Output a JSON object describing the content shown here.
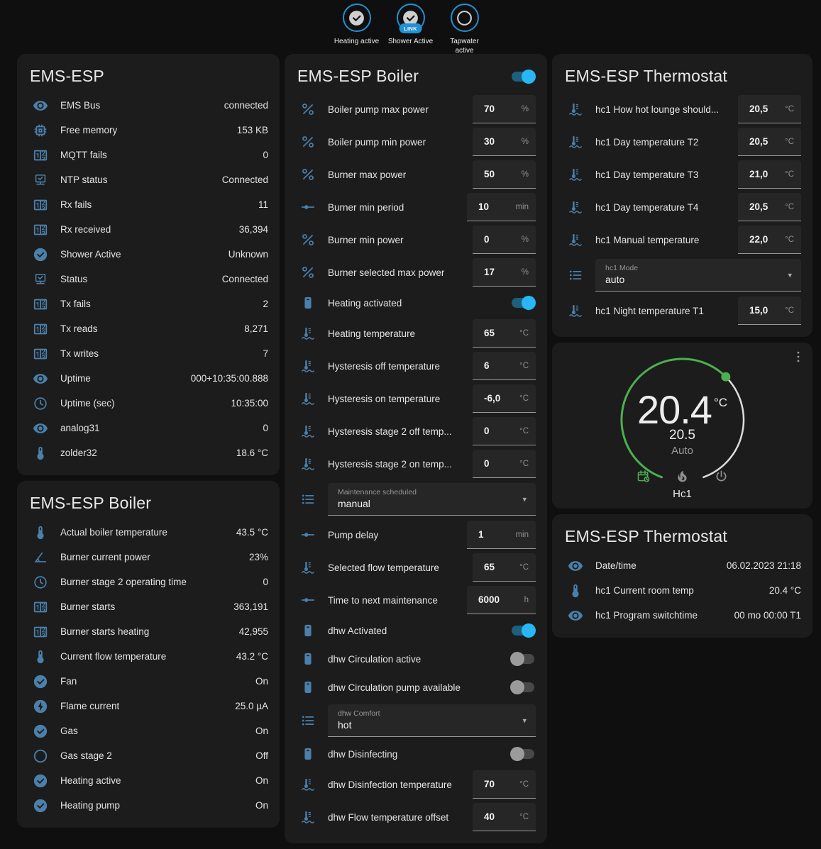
{
  "colors": {
    "accent": "#29b6f6",
    "icon_blue": "#4a80ab",
    "green": "#4caf50",
    "link_blue": "#2191d4",
    "page_bg": "#0f0f0f",
    "card_bg": "#1c1c1c"
  },
  "header": {
    "badges": [
      {
        "icon": "checkcircle",
        "label": "Heating active"
      },
      {
        "icon": "checkcircle",
        "label": "Shower Active",
        "link": "LINK"
      },
      {
        "icon": "circleoutline",
        "label": "Tapwater active"
      }
    ]
  },
  "cards": {
    "system": {
      "title": "EMS-ESP",
      "rows": [
        {
          "icon": "eye",
          "label": "EMS Bus",
          "value": "connected"
        },
        {
          "icon": "memory",
          "label": "Free memory",
          "value": "153 KB"
        },
        {
          "icon": "counter",
          "label": "MQTT fails",
          "value": "0"
        },
        {
          "icon": "network",
          "label": "NTP status",
          "value": "Connected"
        },
        {
          "icon": "counter",
          "label": "Rx fails",
          "value": "11"
        },
        {
          "icon": "counter",
          "label": "Rx received",
          "value": "36,394"
        },
        {
          "icon": "checkcircle",
          "label": "Shower Active",
          "value": "Unknown"
        },
        {
          "icon": "network",
          "label": "Status",
          "value": "Connected"
        },
        {
          "icon": "counter",
          "label": "Tx fails",
          "value": "2"
        },
        {
          "icon": "counter",
          "label": "Tx reads",
          "value": "8,271"
        },
        {
          "icon": "counter",
          "label": "Tx writes",
          "value": "7"
        },
        {
          "icon": "eye",
          "label": "Uptime",
          "value": "000+10:35:00.888"
        },
        {
          "icon": "clock",
          "label": "Uptime (sec)",
          "value": "10:35:00"
        },
        {
          "icon": "eye",
          "label": "analog31",
          "value": "0"
        },
        {
          "icon": "thermometer",
          "label": "zolder32",
          "value": "18.6 °C"
        }
      ]
    },
    "boiler_sensors": {
      "title": "EMS-ESP Boiler",
      "rows": [
        {
          "icon": "thermometer",
          "label": "Actual boiler temperature",
          "value": "43.5 °C"
        },
        {
          "icon": "angle",
          "label": "Burner current power",
          "value": "23%"
        },
        {
          "icon": "clock",
          "label": "Burner stage 2 operating time",
          "value": "0"
        },
        {
          "icon": "counter",
          "label": "Burner starts",
          "value": "363,191"
        },
        {
          "icon": "counter",
          "label": "Burner starts heating",
          "value": "42,955"
        },
        {
          "icon": "thermometer",
          "label": "Current flow temperature",
          "value": "43.2 °C"
        },
        {
          "icon": "checkcircle",
          "label": "Fan",
          "value": "On"
        },
        {
          "icon": "flash",
          "label": "Flame current",
          "value": "25.0 µA"
        },
        {
          "icon": "checkcircle",
          "label": "Gas",
          "value": "On"
        },
        {
          "icon": "circleoutline",
          "label": "Gas stage 2",
          "value": "Off"
        },
        {
          "icon": "checkcircle",
          "label": "Heating active",
          "value": "On"
        },
        {
          "icon": "checkcircle",
          "label": "Heating pump",
          "value": "On"
        }
      ]
    },
    "boiler_controls": {
      "title": "EMS-ESP Boiler",
      "header_toggle": "on",
      "rows": [
        {
          "type": "number",
          "icon": "percent",
          "label": "Boiler pump max power",
          "value": "70",
          "unit": "%"
        },
        {
          "type": "number",
          "icon": "percent",
          "label": "Boiler pump min power",
          "value": "30",
          "unit": "%"
        },
        {
          "type": "number",
          "icon": "percent",
          "label": "Burner max power",
          "value": "50",
          "unit": "%"
        },
        {
          "type": "number",
          "icon": "ray",
          "label": "Burner min period",
          "value": "10",
          "unit": "min"
        },
        {
          "type": "number",
          "icon": "percent",
          "label": "Burner min power",
          "value": "0",
          "unit": "%"
        },
        {
          "type": "number",
          "icon": "percent",
          "label": "Burner selected max power",
          "value": "17",
          "unit": "%"
        },
        {
          "type": "toggle",
          "icon": "boiler",
          "label": "Heating activated",
          "state": "on"
        },
        {
          "type": "number",
          "icon": "coolant",
          "label": "Heating temperature",
          "value": "65",
          "unit": "°C"
        },
        {
          "type": "number",
          "icon": "coolant",
          "label": "Hysteresis off temperature",
          "value": "6",
          "unit": "°C"
        },
        {
          "type": "number",
          "icon": "coolant",
          "label": "Hysteresis on temperature",
          "value": "-6,0",
          "unit": "°C"
        },
        {
          "type": "number",
          "icon": "coolant",
          "label": "Hysteresis stage 2 off temp...",
          "value": "0",
          "unit": "°C"
        },
        {
          "type": "number",
          "icon": "coolant",
          "label": "Hysteresis stage 2 on temp...",
          "value": "0",
          "unit": "°C"
        },
        {
          "type": "select",
          "icon": "list",
          "label": "Maintenance scheduled",
          "value": "manual"
        },
        {
          "type": "number",
          "icon": "ray",
          "label": "Pump delay",
          "value": "1",
          "unit": "min"
        },
        {
          "type": "number",
          "icon": "coolant",
          "label": "Selected flow temperature",
          "value": "65",
          "unit": "°C"
        },
        {
          "type": "number",
          "icon": "ray",
          "label": "Time to next maintenance",
          "value": "6000",
          "unit": "h"
        },
        {
          "type": "toggle",
          "icon": "boiler",
          "label": "dhw Activated",
          "state": "on"
        },
        {
          "type": "toggle",
          "icon": "boiler",
          "label": "dhw Circulation active",
          "state": "off"
        },
        {
          "type": "toggle",
          "icon": "boiler",
          "label": "dhw Circulation pump available",
          "state": "off"
        },
        {
          "type": "select",
          "icon": "list",
          "label": "dhw Comfort",
          "value": "hot"
        },
        {
          "type": "toggle",
          "icon": "boiler",
          "label": "dhw Disinfecting",
          "state": "off"
        },
        {
          "type": "number",
          "icon": "coolant",
          "label": "dhw Disinfection temperature",
          "value": "70",
          "unit": "°C"
        },
        {
          "type": "number",
          "icon": "coolant",
          "label": "dhw Flow temperature offset",
          "value": "40",
          "unit": "°C"
        }
      ]
    },
    "thermostat_controls": {
      "title": "EMS-ESP Thermostat",
      "rows": [
        {
          "type": "number",
          "icon": "coolant",
          "label": "hc1 How hot lounge should...",
          "value": "20,5",
          "unit": "°C"
        },
        {
          "type": "number",
          "icon": "coolant",
          "label": "hc1 Day temperature T2",
          "value": "20,5",
          "unit": "°C"
        },
        {
          "type": "number",
          "icon": "coolant",
          "label": "hc1 Day temperature T3",
          "value": "21,0",
          "unit": "°C"
        },
        {
          "type": "number",
          "icon": "coolant",
          "label": "hc1 Day temperature T4",
          "value": "20,5",
          "unit": "°C"
        },
        {
          "type": "number",
          "icon": "coolant",
          "label": "hc1 Manual temperature",
          "value": "22,0",
          "unit": "°C"
        },
        {
          "type": "select",
          "icon": "list",
          "label": "hc1 Mode",
          "value": "auto"
        },
        {
          "type": "number",
          "icon": "coolant",
          "label": "hc1 Night temperature T1",
          "value": "15,0",
          "unit": "°C"
        }
      ]
    },
    "thermostat_gauge": {
      "current": "20.4",
      "unit": "°C",
      "target": "20.5",
      "mode": "Auto",
      "name": "Hc1",
      "icons": [
        "calendar-clock",
        "fire",
        "power"
      ]
    },
    "thermostat_sensors": {
      "title": "EMS-ESP Thermostat",
      "rows": [
        {
          "icon": "eye",
          "label": "Date/time",
          "value": "06.02.2023 21:18"
        },
        {
          "icon": "thermometer",
          "label": "hc1 Current room temp",
          "value": "20.4 °C"
        },
        {
          "icon": "eye",
          "label": "hc1 Program switchtime",
          "value": "00 mo 00:00 T1"
        }
      ]
    }
  }
}
